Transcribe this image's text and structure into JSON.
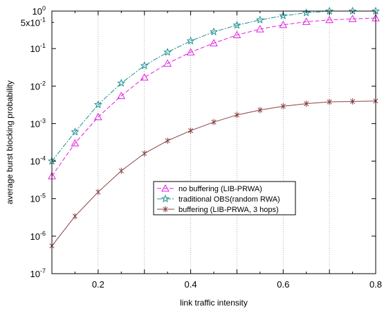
{
  "chart_data": {
    "type": "line",
    "title": "",
    "xlabel": "link traffic intensity",
    "ylabel": "average  burst blocking probability",
    "xlim": [
      0.1,
      0.8
    ],
    "ylim": [
      1e-07,
      1
    ],
    "yscale": "log",
    "grid": {
      "x": true,
      "y": false,
      "style": "dotted"
    },
    "legend_position": "center-bottom",
    "x_ticks": [
      {
        "v": 0.2,
        "label": "0.2"
      },
      {
        "v": 0.4,
        "label": "0.4"
      },
      {
        "v": 0.6,
        "label": "0.6"
      },
      {
        "v": 0.8,
        "label": "0.8"
      }
    ],
    "y_ticks": [
      {
        "v": 1,
        "base": "10",
        "exp": "0"
      },
      {
        "v": 0.5,
        "base": "5x10",
        "exp": "-1"
      },
      {
        "v": 0.1,
        "base": "10",
        "exp": "-1"
      },
      {
        "v": 0.01,
        "base": "10",
        "exp": "-2"
      },
      {
        "v": 0.001,
        "base": "10",
        "exp": "-3"
      },
      {
        "v": 0.0001,
        "base": "10",
        "exp": "-4"
      },
      {
        "v": 1e-05,
        "base": "10",
        "exp": "-5"
      },
      {
        "v": 1e-06,
        "base": "10",
        "exp": "-6"
      },
      {
        "v": 1e-07,
        "base": "10",
        "exp": "-7"
      }
    ],
    "x": [
      0.1,
      0.15,
      0.2,
      0.25,
      0.3,
      0.35,
      0.4,
      0.45,
      0.5,
      0.55,
      0.6,
      0.65,
      0.7,
      0.75,
      0.8
    ],
    "series": [
      {
        "name": "no buffering (LIB-PRWA)",
        "color": "#e020e0",
        "marker": "triangle",
        "dash": "6,3",
        "values": [
          4e-05,
          0.0003,
          0.0015,
          0.0055,
          0.017,
          0.04,
          0.08,
          0.14,
          0.23,
          0.33,
          0.43,
          0.52,
          0.58,
          0.62,
          0.65
        ]
      },
      {
        "name": "traditional OBS(random RWA)",
        "color": "#1a9090",
        "marker": "star",
        "dash": "7,2,2,2",
        "values": [
          0.0001,
          0.0006,
          0.0032,
          0.012,
          0.035,
          0.08,
          0.16,
          0.28,
          0.42,
          0.58,
          0.75,
          0.9,
          1.0,
          1.0,
          1.0
        ]
      },
      {
        "name": "buffering (LIB-PRWA, 3 hops)",
        "color": "#8a4040",
        "marker": "asterisk",
        "dash": "",
        "values": [
          5.5e-07,
          3.4e-06,
          1.5e-05,
          5.5e-05,
          0.00016,
          0.00035,
          0.00065,
          0.0011,
          0.0017,
          0.0023,
          0.0029,
          0.0034,
          0.0038,
          0.0039,
          0.004
        ]
      }
    ]
  }
}
